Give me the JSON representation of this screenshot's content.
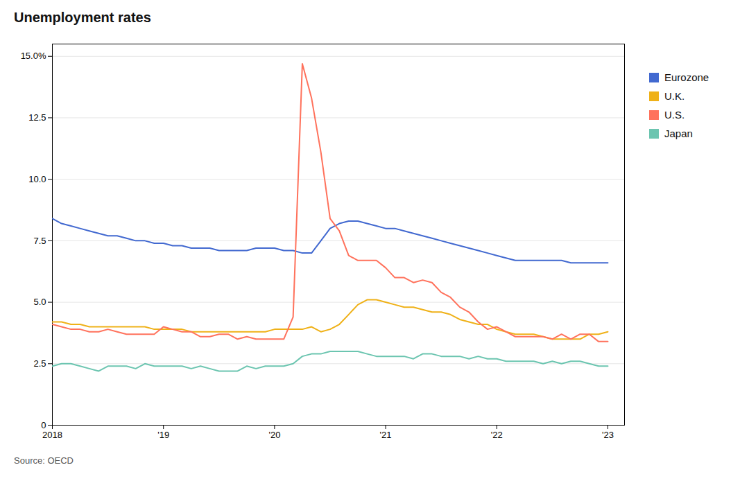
{
  "chart_data": {
    "type": "line",
    "title": "Unemployment rates",
    "annotations": [
      "Source: OECD"
    ],
    "x": [
      2018.0,
      2018.083,
      2018.167,
      2018.25,
      2018.333,
      2018.417,
      2018.5,
      2018.583,
      2018.667,
      2018.75,
      2018.833,
      2018.917,
      2019.0,
      2019.083,
      2019.167,
      2019.25,
      2019.333,
      2019.417,
      2019.5,
      2019.583,
      2019.667,
      2019.75,
      2019.833,
      2019.917,
      2020.0,
      2020.083,
      2020.167,
      2020.25,
      2020.333,
      2020.417,
      2020.5,
      2020.583,
      2020.667,
      2020.75,
      2020.833,
      2020.917,
      2021.0,
      2021.083,
      2021.167,
      2021.25,
      2021.333,
      2021.417,
      2021.5,
      2021.583,
      2021.667,
      2021.75,
      2021.833,
      2021.917,
      2022.0,
      2022.083,
      2022.167,
      2022.25,
      2022.333,
      2022.417,
      2022.5,
      2022.583,
      2022.667,
      2022.75,
      2022.833,
      2022.917,
      2023.0
    ],
    "series": [
      {
        "name": "Eurozone",
        "values": [
          8.4,
          8.2,
          8.1,
          8.0,
          7.9,
          7.8,
          7.7,
          7.7,
          7.6,
          7.5,
          7.5,
          7.4,
          7.4,
          7.3,
          7.3,
          7.2,
          7.2,
          7.2,
          7.1,
          7.1,
          7.1,
          7.1,
          7.2,
          7.2,
          7.2,
          7.1,
          7.1,
          7.0,
          7.0,
          7.5,
          8.0,
          8.2,
          8.3,
          8.3,
          8.2,
          8.1,
          8.0,
          8.0,
          7.9,
          7.8,
          7.7,
          7.6,
          7.5,
          7.4,
          7.3,
          7.2,
          7.1,
          7.0,
          6.9,
          6.8,
          6.7,
          6.7,
          6.7,
          6.7,
          6.7,
          6.7,
          6.6,
          6.6,
          6.6,
          6.6,
          6.6
        ]
      },
      {
        "name": "U.K.",
        "values": [
          4.2,
          4.2,
          4.1,
          4.1,
          4.0,
          4.0,
          4.0,
          4.0,
          4.0,
          4.0,
          4.0,
          3.9,
          3.9,
          3.9,
          3.9,
          3.8,
          3.8,
          3.8,
          3.8,
          3.8,
          3.8,
          3.8,
          3.8,
          3.8,
          3.9,
          3.9,
          3.9,
          3.9,
          4.0,
          3.8,
          3.9,
          4.1,
          4.5,
          4.9,
          5.1,
          5.1,
          5.0,
          4.9,
          4.8,
          4.8,
          4.7,
          4.6,
          4.6,
          4.5,
          4.3,
          4.2,
          4.1,
          4.1,
          3.9,
          3.8,
          3.7,
          3.7,
          3.7,
          3.6,
          3.5,
          3.5,
          3.5,
          3.5,
          3.7,
          3.7,
          3.8
        ]
      },
      {
        "name": "U.S.",
        "values": [
          4.1,
          4.0,
          3.9,
          3.9,
          3.8,
          3.8,
          3.9,
          3.8,
          3.7,
          3.7,
          3.7,
          3.7,
          4.0,
          3.9,
          3.8,
          3.8,
          3.6,
          3.6,
          3.7,
          3.7,
          3.5,
          3.6,
          3.5,
          3.5,
          3.5,
          3.5,
          4.4,
          14.7,
          13.3,
          11.1,
          8.4,
          7.9,
          6.9,
          6.7,
          6.7,
          6.7,
          6.4,
          6.0,
          6.0,
          5.8,
          5.9,
          5.8,
          5.4,
          5.2,
          4.8,
          4.6,
          4.2,
          3.9,
          4.0,
          3.8,
          3.6,
          3.6,
          3.6,
          3.6,
          3.5,
          3.7,
          3.5,
          3.7,
          3.7,
          3.4,
          3.4
        ]
      },
      {
        "name": "Japan",
        "values": [
          2.4,
          2.5,
          2.5,
          2.4,
          2.3,
          2.2,
          2.4,
          2.4,
          2.4,
          2.3,
          2.5,
          2.4,
          2.4,
          2.4,
          2.4,
          2.3,
          2.4,
          2.3,
          2.2,
          2.2,
          2.2,
          2.4,
          2.3,
          2.4,
          2.4,
          2.4,
          2.5,
          2.8,
          2.9,
          2.9,
          3.0,
          3.0,
          3.0,
          3.0,
          2.9,
          2.8,
          2.8,
          2.8,
          2.8,
          2.7,
          2.9,
          2.9,
          2.8,
          2.8,
          2.8,
          2.7,
          2.8,
          2.7,
          2.7,
          2.6,
          2.6,
          2.6,
          2.6,
          2.5,
          2.6,
          2.5,
          2.6,
          2.6,
          2.5,
          2.4,
          2.4
        ]
      }
    ],
    "xlim": [
      2018,
      2023.15
    ],
    "xticks": [
      2018,
      {
        "value": 2019,
        "label": "'19"
      },
      {
        "value": 2020,
        "label": "'20"
      },
      {
        "value": 2021,
        "label": "'21"
      },
      {
        "value": 2022,
        "label": "'22"
      },
      {
        "value": 2023,
        "label": "'23"
      }
    ],
    "ylim": [
      0,
      15.5
    ],
    "yticks": [
      0,
      2.5,
      {
        "value": 5.0,
        "label": "5.0"
      },
      7.5,
      {
        "value": 10.0,
        "label": "10.0"
      },
      12.5,
      {
        "value": 15.0,
        "label": "15.0%"
      }
    ],
    "grid": "y",
    "legend": "right"
  }
}
